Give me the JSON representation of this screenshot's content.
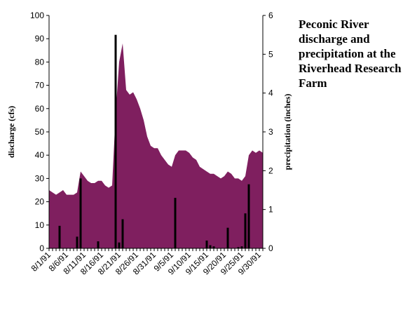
{
  "chart_data": {
    "type": "area",
    "title": "Peconic River discharge and precipitation at the Riverhead Research Farm",
    "ylabel_left": "discharge (cfs)",
    "ylabel_right": "precipitation (inches)",
    "ylim_left": [
      0,
      100
    ],
    "ylim_right": [
      0,
      6
    ],
    "yticks_left": [
      "0",
      "10",
      "20",
      "30",
      "40",
      "50",
      "60",
      "70",
      "80",
      "90",
      "100"
    ],
    "yticks_right": [
      "0",
      "1",
      "2",
      "3",
      "4",
      "5",
      "6"
    ],
    "xtick_labels": [
      "8/1/91",
      "8/6/91",
      "8/11/91",
      "8/16/91",
      "8/21/91",
      "8/26/91",
      "8/31/91",
      "9/5/91",
      "9/10/91",
      "9/15/91",
      "9/20/91",
      "9/25/91",
      "9/30/91"
    ],
    "dates": [
      "8/1/91",
      "8/2/91",
      "8/3/91",
      "8/4/91",
      "8/5/91",
      "8/6/91",
      "8/7/91",
      "8/8/91",
      "8/9/91",
      "8/10/91",
      "8/11/91",
      "8/12/91",
      "8/13/91",
      "8/14/91",
      "8/15/91",
      "8/16/91",
      "8/17/91",
      "8/18/91",
      "8/19/91",
      "8/20/91",
      "8/21/91",
      "8/22/91",
      "8/23/91",
      "8/24/91",
      "8/25/91",
      "8/26/91",
      "8/27/91",
      "8/28/91",
      "8/29/91",
      "8/30/91",
      "8/31/91",
      "9/1/91",
      "9/2/91",
      "9/3/91",
      "9/4/91",
      "9/5/91",
      "9/6/91",
      "9/7/91",
      "9/8/91",
      "9/9/91",
      "9/10/91",
      "9/11/91",
      "9/12/91",
      "9/13/91",
      "9/14/91",
      "9/15/91",
      "9/16/91",
      "9/17/91",
      "9/18/91",
      "9/19/91",
      "9/20/91",
      "9/21/91",
      "9/22/91",
      "9/23/91",
      "9/24/91",
      "9/25/91",
      "9/26/91",
      "9/27/91",
      "9/28/91",
      "9/29/91",
      "9/30/91",
      "10/1/91"
    ],
    "series": [
      {
        "name": "discharge (cfs)",
        "type": "area",
        "axis": "left",
        "color": "#7f1f5f",
        "values": [
          25,
          24,
          23,
          24,
          25,
          23,
          23,
          23,
          24,
          33,
          31,
          29,
          28,
          28,
          29,
          29,
          27,
          26,
          27,
          58,
          80,
          88,
          68,
          66,
          67,
          64,
          60,
          55,
          48,
          44,
          43,
          43,
          40,
          38,
          36,
          35,
          40,
          42,
          42,
          42,
          41,
          39,
          38,
          35,
          34,
          33,
          32,
          32,
          31,
          30,
          31,
          33,
          32,
          30,
          30,
          29,
          31,
          40,
          42,
          41,
          42,
          41
        ]
      },
      {
        "name": "precipitation (inches)",
        "type": "bar",
        "axis": "right",
        "color": "#000000",
        "values": [
          0,
          0,
          0,
          0.58,
          0,
          0,
          0,
          0,
          0.3,
          1.8,
          0,
          0,
          0,
          0,
          0.18,
          0,
          0,
          0,
          0,
          5.5,
          0.15,
          0.75,
          0,
          0,
          0,
          0,
          0,
          0,
          0,
          0,
          0,
          0,
          0,
          0,
          0,
          0,
          1.3,
          0,
          0,
          0,
          0,
          0,
          0,
          0,
          0,
          0.2,
          0.08,
          0.05,
          0,
          0,
          0,
          0.53,
          0,
          0,
          0.03,
          0.05,
          0.9,
          1.65,
          0,
          0,
          0,
          0
        ]
      }
    ],
    "grid": false,
    "legend": "none"
  }
}
